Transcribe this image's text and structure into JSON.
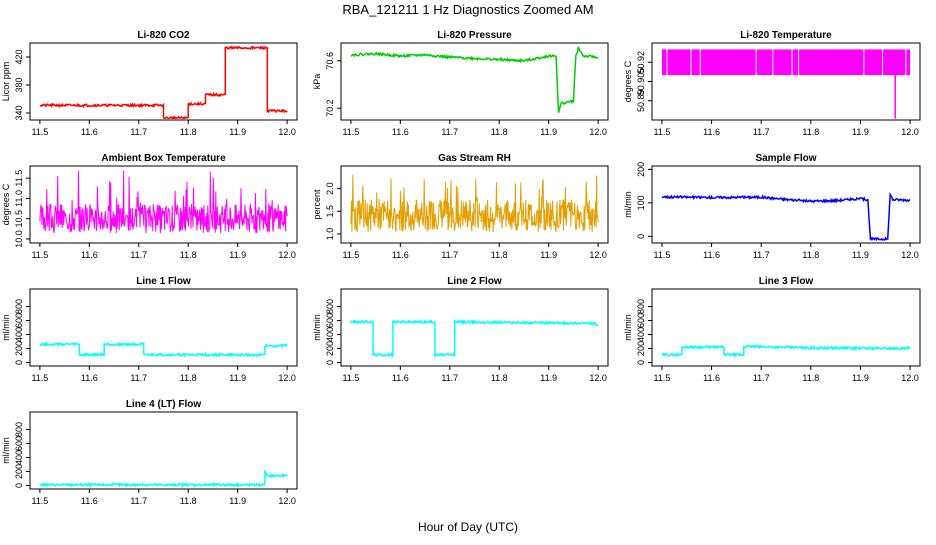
{
  "figure": {
    "title": "RBA_121211  1 Hz Diagnostics Zoomed AM",
    "xlabel": "Hour of Day (UTC)"
  },
  "chart_data": [
    {
      "type": "line",
      "title": "Li-820 CO2",
      "ylabel": "Licor ppm",
      "color": "#ff0000",
      "xlim": [
        11.48,
        12.02
      ],
      "ylim": [
        330,
        440
      ],
      "xticks": [
        11.5,
        11.6,
        11.7,
        11.8,
        11.9,
        12.0
      ],
      "xtick_labels": [
        "11.5",
        "11.6",
        "11.7",
        "11.8",
        "11.9",
        "12.0"
      ],
      "yticks": [
        340,
        380,
        420
      ],
      "ytick_labels": [
        "340",
        "380",
        "420"
      ],
      "x": [
        11.5,
        11.75,
        11.75,
        11.8,
        11.8,
        11.835,
        11.835,
        11.875,
        11.875,
        11.96,
        11.96,
        12.0
      ],
      "y": [
        351,
        351,
        333,
        333,
        353,
        353,
        366,
        366,
        433,
        433,
        343,
        343
      ]
    },
    {
      "type": "line",
      "title": "Li-820 Pressure",
      "ylabel": "kPa",
      "color": "#00cc00",
      "xlim": [
        11.48,
        12.02
      ],
      "ylim": [
        70.1,
        70.75
      ],
      "xticks": [
        11.5,
        11.6,
        11.7,
        11.8,
        11.9,
        12.0
      ],
      "xtick_labels": [
        "11.5",
        "11.6",
        "11.7",
        "11.8",
        "11.9",
        "12.0"
      ],
      "yticks": [
        70.2,
        70.6
      ],
      "ytick_labels": [
        "70.2",
        "70.6"
      ],
      "x": [
        11.5,
        11.55,
        11.6,
        11.65,
        11.7,
        11.75,
        11.8,
        11.85,
        11.9,
        11.915,
        11.92,
        11.925,
        11.95,
        11.955,
        11.96,
        11.97,
        12.0
      ],
      "y": [
        70.65,
        70.66,
        70.64,
        70.65,
        70.63,
        70.62,
        70.61,
        70.6,
        70.64,
        70.64,
        70.16,
        70.24,
        70.26,
        70.64,
        70.71,
        70.64,
        70.63
      ]
    },
    {
      "type": "area",
      "title": "Li-820 Temperature",
      "ylabel": "degrees C",
      "color": "#ff00ff",
      "xlim": [
        11.48,
        12.02
      ],
      "ylim": [
        50.875,
        50.935
      ],
      "xticks": [
        11.5,
        11.6,
        11.7,
        11.8,
        11.9,
        12.0
      ],
      "xtick_labels": [
        "11.5",
        "11.6",
        "11.7",
        "11.8",
        "11.9",
        "12.0"
      ],
      "yticks": [
        50.89,
        50.905,
        50.92
      ],
      "ytick_labels": [
        "50.89",
        "50.905",
        "50.92"
      ],
      "band": [
        50.91,
        50.93
      ],
      "dip_x": 11.97,
      "dip_y": 50.876
    },
    {
      "type": "line",
      "title": "Ambient Box Temperature",
      "ylabel": "degrees C",
      "color": "#ff00ff",
      "xlim": [
        11.48,
        12.02
      ],
      "ylim": [
        9.9,
        11.8
      ],
      "xticks": [
        11.5,
        11.6,
        11.7,
        11.8,
        11.9,
        12.0
      ],
      "xtick_labels": [
        "11.5",
        "11.6",
        "11.7",
        "11.8",
        "11.9",
        "12.0"
      ],
      "yticks": [
        10.0,
        10.5,
        11.0,
        11.5
      ],
      "ytick_labels": [
        "10.0",
        "10.5",
        "11.0",
        "11.5"
      ],
      "noise": {
        "low": 10.05,
        "mid": 10.5,
        "high": 11.7
      }
    },
    {
      "type": "line",
      "title": "Gas Stream RH",
      "ylabel": "percent",
      "color": "#e69f00",
      "xlim": [
        11.48,
        12.02
      ],
      "ylim": [
        0.8,
        2.5
      ],
      "xticks": [
        11.5,
        11.6,
        11.7,
        11.8,
        11.9,
        12.0
      ],
      "xtick_labels": [
        "11.5",
        "11.6",
        "11.7",
        "11.8",
        "11.9",
        "12.0"
      ],
      "yticks": [
        1.0,
        1.5,
        2.0
      ],
      "ytick_labels": [
        "1.0",
        "1.5",
        "2.0"
      ],
      "noise": {
        "low": 0.95,
        "mid": 1.4,
        "high": 2.4
      }
    },
    {
      "type": "line",
      "title": "Sample Flow",
      "ylabel": "ml/min",
      "color": "#0000ff",
      "xlim": [
        11.48,
        12.02
      ],
      "ylim": [
        -20,
        210
      ],
      "xticks": [
        11.5,
        11.6,
        11.7,
        11.8,
        11.9,
        12.0
      ],
      "xtick_labels": [
        "11.5",
        "11.6",
        "11.7",
        "11.8",
        "11.9",
        "12.0"
      ],
      "yticks": [
        0,
        100,
        200
      ],
      "ytick_labels": [
        "0",
        "100",
        "200"
      ],
      "x": [
        11.5,
        11.6,
        11.7,
        11.75,
        11.8,
        11.85,
        11.9,
        11.915,
        11.92,
        11.955,
        11.96,
        11.965,
        12.0
      ],
      "y": [
        118,
        116,
        117,
        110,
        105,
        107,
        112,
        110,
        -8,
        -8,
        125,
        110,
        108
      ]
    },
    {
      "type": "line",
      "title": "Line 1 Flow",
      "ylabel": "ml/min",
      "color": "#00ffff",
      "xlim": [
        11.48,
        12.02
      ],
      "ylim": [
        -50,
        1050
      ],
      "xticks": [
        11.5,
        11.6,
        11.7,
        11.8,
        11.9,
        12.0
      ],
      "xtick_labels": [
        "11.5",
        "11.6",
        "11.7",
        "11.8",
        "11.9",
        "12.0"
      ],
      "yticks": [
        0,
        200,
        400,
        600,
        800
      ],
      "ytick_labels": [
        "0",
        "200",
        "400",
        "600",
        "800"
      ],
      "x": [
        11.5,
        11.58,
        11.58,
        11.63,
        11.63,
        11.71,
        11.71,
        11.955,
        11.955,
        12.0
      ],
      "y": [
        260,
        260,
        110,
        110,
        260,
        260,
        110,
        110,
        240,
        240
      ]
    },
    {
      "type": "line",
      "title": "Line 2 Flow",
      "ylabel": "ml/min",
      "color": "#00ffff",
      "xlim": [
        11.48,
        12.02
      ],
      "ylim": [
        -50,
        1050
      ],
      "xticks": [
        11.5,
        11.6,
        11.7,
        11.8,
        11.9,
        12.0
      ],
      "xtick_labels": [
        "11.5",
        "11.6",
        "11.7",
        "11.8",
        "11.9",
        "12.0"
      ],
      "yticks": [
        0,
        200,
        400,
        600,
        800
      ],
      "ytick_labels": [
        "0",
        "200",
        "400",
        "600",
        "800"
      ],
      "x": [
        11.5,
        11.545,
        11.545,
        11.585,
        11.585,
        11.67,
        11.67,
        11.71,
        11.71,
        11.99,
        12.0
      ],
      "y": [
        580,
        580,
        110,
        110,
        580,
        580,
        110,
        110,
        580,
        560,
        540
      ]
    },
    {
      "type": "line",
      "title": "Line 3 Flow",
      "ylabel": "ml/min",
      "color": "#00ffff",
      "xlim": [
        11.48,
        12.02
      ],
      "ylim": [
        -50,
        1050
      ],
      "xticks": [
        11.5,
        11.6,
        11.7,
        11.8,
        11.9,
        12.0
      ],
      "xtick_labels": [
        "11.5",
        "11.6",
        "11.7",
        "11.8",
        "11.9",
        "12.0"
      ],
      "yticks": [
        0,
        200,
        400,
        600,
        800
      ],
      "ytick_labels": [
        "0",
        "200",
        "400",
        "600",
        "800"
      ],
      "x": [
        11.5,
        11.54,
        11.54,
        11.625,
        11.625,
        11.665,
        11.665,
        11.8,
        12.0
      ],
      "y": [
        110,
        110,
        220,
        220,
        110,
        110,
        230,
        210,
        200
      ]
    },
    {
      "type": "line",
      "title": "Line 4 (LT) Flow",
      "ylabel": "ml/min",
      "color": "#00ffff",
      "xlim": [
        11.48,
        12.02
      ],
      "ylim": [
        -50,
        1050
      ],
      "xticks": [
        11.5,
        11.6,
        11.7,
        11.8,
        11.9,
        12.0
      ],
      "xtick_labels": [
        "11.5",
        "11.6",
        "11.7",
        "11.8",
        "11.9",
        "12.0"
      ],
      "yticks": [
        0,
        200,
        400,
        600,
        800
      ],
      "ytick_labels": [
        "0",
        "200",
        "400",
        "600",
        "800"
      ],
      "x": [
        11.5,
        11.955,
        11.955,
        11.96,
        11.965,
        12.0
      ],
      "y": [
        10,
        10,
        210,
        130,
        140,
        140
      ]
    }
  ]
}
